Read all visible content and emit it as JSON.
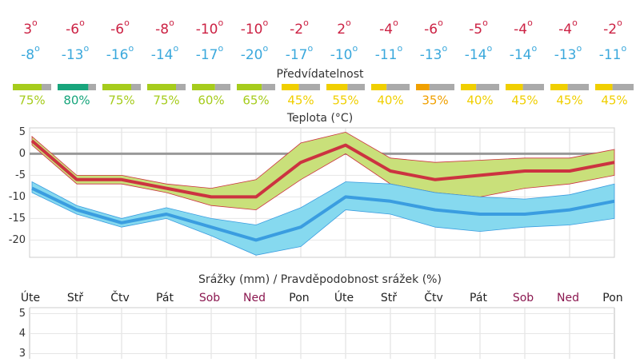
{
  "degree_mark": "o",
  "predictability": {
    "title": "Předvídatelnost",
    "values": [
      75,
      80,
      75,
      75,
      60,
      65,
      45,
      55,
      40,
      35,
      40,
      45,
      45,
      45
    ],
    "value_labels": [
      "75%",
      "80%",
      "75%",
      "75%",
      "60%",
      "65%",
      "45%",
      "55%",
      "40%",
      "35%",
      "40%",
      "45%",
      "45%",
      "45%"
    ],
    "colors": [
      "#a6cc1c",
      "#17a57c",
      "#a6cc1c",
      "#a6cc1c",
      "#a6cc1c",
      "#a6cc1c",
      "#f0cf00",
      "#f0cf00",
      "#f0cf00",
      "#f0a000",
      "#f0cf00",
      "#f0cf00",
      "#f0cf00",
      "#f0cf00"
    ],
    "remainder_color": "#aaaaaa"
  },
  "chart_data": [
    {
      "type": "line",
      "title": "Teplota (°C)",
      "series": [
        {
          "color": "#cc3340",
          "label_color": "#cc2244",
          "values": [
            3,
            -6,
            -6,
            -8,
            -10,
            -10,
            -2,
            2,
            -4,
            -6,
            -5,
            -4,
            -4,
            -2
          ],
          "band_upper": [
            4,
            -5,
            -5,
            -7,
            -8,
            -6,
            2.5,
            5,
            -1,
            -2,
            -1.5,
            -1,
            -1,
            1
          ],
          "band_lower": [
            2,
            -7,
            -7,
            -9,
            -12,
            -13,
            -6,
            0,
            -7,
            -9,
            -10,
            -8,
            -7,
            -5
          ],
          "band_color": "#c9e07a"
        },
        {
          "color": "#3a9de0",
          "label_color": "#3aa8dc",
          "values": [
            -8,
            -13,
            -16,
            -14,
            -17,
            -20,
            -17,
            -10,
            -11,
            -13,
            -14,
            -14,
            -13,
            -11
          ],
          "band_upper": [
            -6.5,
            -12,
            -15,
            -12.5,
            -15,
            -16.5,
            -12.5,
            -6.5,
            -7,
            -9,
            -10,
            -10.5,
            -9.5,
            -7
          ],
          "band_lower": [
            -9,
            -14,
            -17,
            -15,
            -19,
            -23.5,
            -21.5,
            -13,
            -14,
            -17,
            -18,
            -17,
            -16.5,
            -15
          ],
          "band_color": "#86d9ef"
        }
      ],
      "ylim": [
        -24,
        6
      ],
      "yticks": [
        -20,
        -15,
        -10,
        -5,
        0,
        5
      ],
      "grid": true,
      "zero_line": true
    },
    {
      "type": "bar",
      "title": "Srážky (mm) / Pravděpodobnost srážek (%)",
      "categories": [
        "Úte",
        "Stř",
        "Čtv",
        "Pát",
        "Sob",
        "Ned",
        "Pon",
        "Úte",
        "Stř",
        "Čtv",
        "Pát",
        "Sob",
        "Ned",
        "Pon"
      ],
      "category_colors": [
        "#222",
        "#222",
        "#222",
        "#222",
        "#8b1850",
        "#8b1850",
        "#222",
        "#222",
        "#222",
        "#222",
        "#222",
        "#8b1850",
        "#8b1850",
        "#222"
      ],
      "ylim": [
        0,
        5.3
      ],
      "yticks": [
        3,
        4,
        5
      ],
      "grid": true
    }
  ]
}
